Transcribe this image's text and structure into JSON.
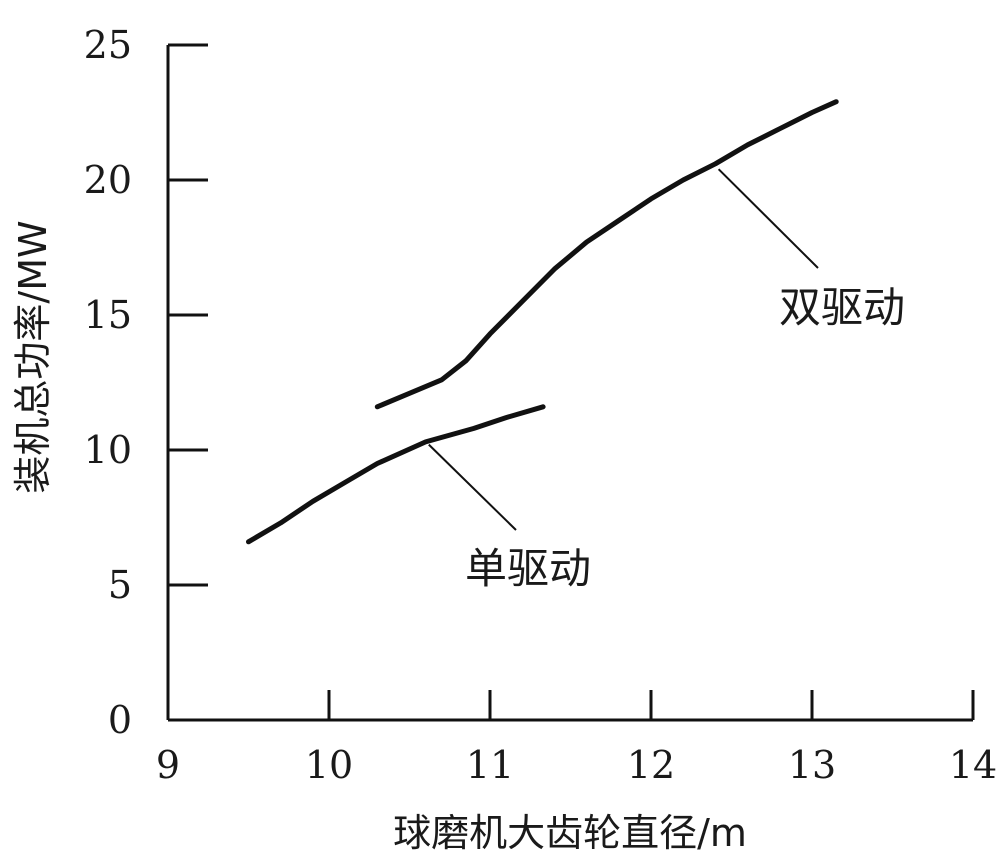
{
  "chart_data": {
    "type": "line",
    "xlabel": "球磨机大齿轮直径/m",
    "ylabel": "装机总功率/MW",
    "xlim": [
      9,
      14
    ],
    "ylim": [
      0,
      25
    ],
    "x_ticks": [
      9,
      10,
      11,
      12,
      13,
      14
    ],
    "y_ticks": [
      0,
      5,
      10,
      15,
      20,
      25
    ],
    "grid": false,
    "series": [
      {
        "name": "单驱动",
        "x": [
          9.5,
          9.7,
          9.9,
          10.1,
          10.3,
          10.6,
          10.9,
          11.1,
          11.33
        ],
        "y": [
          6.6,
          7.3,
          8.1,
          8.8,
          9.5,
          10.3,
          10.8,
          11.2,
          11.6
        ]
      },
      {
        "name": "双驱动",
        "x": [
          10.3,
          10.5,
          10.7,
          10.85,
          11.0,
          11.2,
          11.4,
          11.6,
          11.8,
          12.0,
          12.2,
          12.4,
          12.6,
          12.8,
          13.0,
          13.15
        ],
        "y": [
          11.6,
          12.1,
          12.6,
          13.3,
          14.3,
          15.5,
          16.7,
          17.7,
          18.5,
          19.3,
          20.0,
          20.6,
          21.3,
          21.9,
          22.5,
          22.9
        ]
      }
    ],
    "annotations": [
      {
        "text": "单驱动",
        "series": "单驱动"
      },
      {
        "text": "双驱动",
        "series": "双驱动"
      }
    ]
  }
}
